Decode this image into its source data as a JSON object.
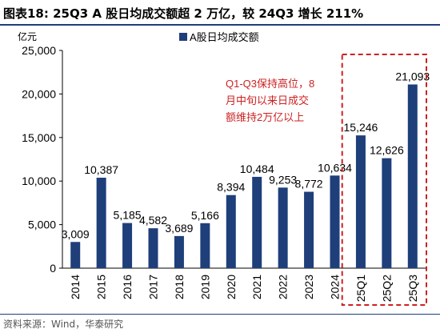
{
  "header": {
    "title": "图表18:  25Q3 A 股日均成交额超 2 万亿，较 24Q3 增长 211%"
  },
  "source": "资料来源：Wind，华泰研究",
  "colors": {
    "bar": "#1f3f7a",
    "highlight_box": "#cc2222",
    "annotation": "#cc2222",
    "title_rule": "#1f3f7a"
  },
  "chart_data": {
    "type": "bar",
    "title": "",
    "ylabel": "亿元",
    "xlabel": "",
    "categories": [
      "2014",
      "2015",
      "2016",
      "2017",
      "2018",
      "2019",
      "2020",
      "2021",
      "2022",
      "2023",
      "2024",
      "25Q1",
      "25Q2",
      "25Q3"
    ],
    "series": [
      {
        "name": "A股日均成交额",
        "values": [
          3009,
          10387,
          5185,
          4582,
          3689,
          5166,
          8394,
          10484,
          9253,
          8772,
          10634,
          15246,
          12626,
          21093
        ]
      }
    ],
    "data_labels": [
      "3,009",
      "10,387",
      "5,185",
      "4,582",
      "3,689",
      "5,166",
      "8,394",
      "10,484",
      "9,253",
      "8,772",
      "10,634",
      "15,246",
      "12,626",
      "21,093"
    ],
    "ylim": [
      0,
      25000
    ],
    "yticks": [
      0,
      5000,
      10000,
      15000,
      20000,
      25000
    ],
    "ytick_labels": [
      "0",
      "5,000",
      "10,000",
      "15,000",
      "20,000",
      "25,000"
    ],
    "grid": false,
    "legend": "top",
    "highlighted_categories": [
      "25Q1",
      "25Q2",
      "25Q3"
    ],
    "annotation": [
      "Q1-Q3保持高位，8",
      "月中旬以来日成交",
      "额维持2万亿以上"
    ]
  }
}
